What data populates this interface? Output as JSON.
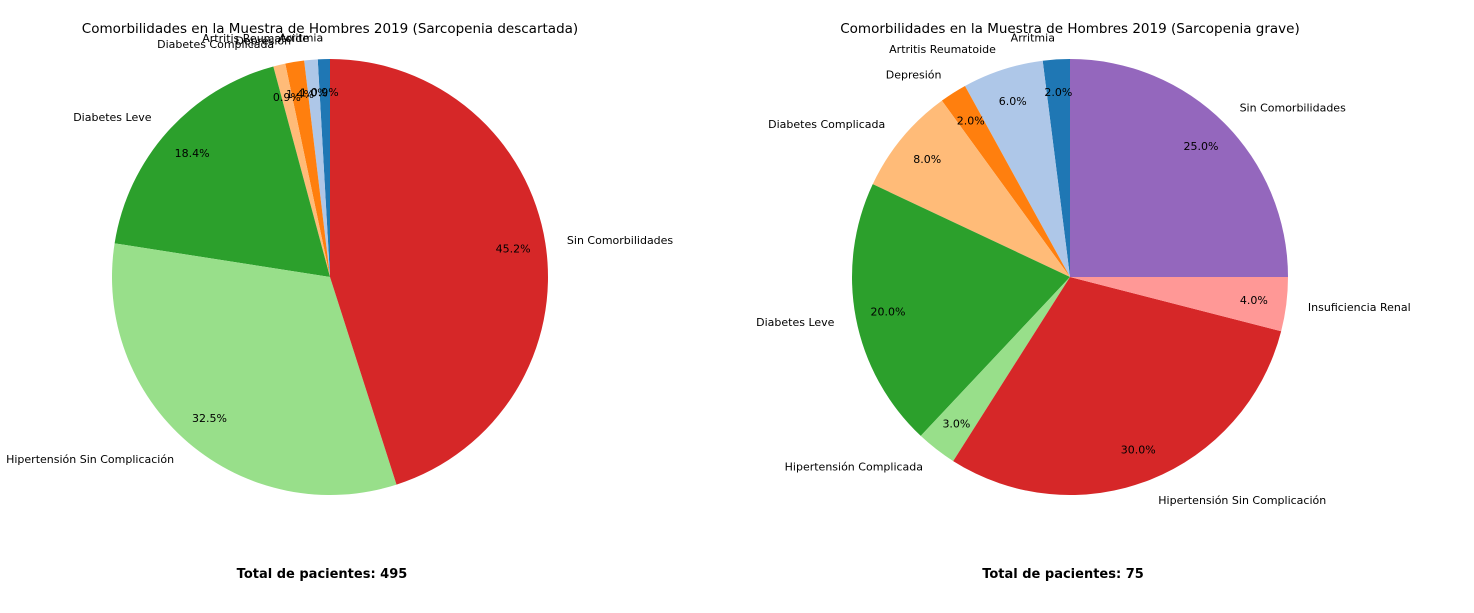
{
  "chart_data": [
    {
      "type": "pie",
      "title": "Comorbilidades en la Muestra de Hombres 2019 (Sarcopenia descartada)",
      "footer": "Total de pacientes: 495",
      "slices": [
        {
          "label": "Arritmia",
          "value": 0.9,
          "pct_label": "0.9%",
          "color": "#1f77b4"
        },
        {
          "label": "Artritis Reumatoide",
          "value": 1.0,
          "pct_label": "1.0%",
          "color": "#aec7e8"
        },
        {
          "label": "Depresión",
          "value": 1.4,
          "pct_label": "1.4%",
          "color": "#ff7f0e"
        },
        {
          "label": "Diabetes Complicada",
          "value": 0.9,
          "pct_label": "0.9%",
          "color": "#ffbb78"
        },
        {
          "label": "Diabetes Leve",
          "value": 18.4,
          "pct_label": "18.4%",
          "color": "#2ca02c"
        },
        {
          "label": "Hipertensión Sin Complicación",
          "value": 32.5,
          "pct_label": "32.5%",
          "color": "#98df8a"
        },
        {
          "label": "Sin Comorbilidades",
          "value": 45.2,
          "pct_label": "45.2%",
          "color": "#d62728"
        }
      ]
    },
    {
      "type": "pie",
      "title": "Comorbilidades en la Muestra de Hombres 2019 (Sarcopenia grave)",
      "footer": "Total de pacientes: 75",
      "slices": [
        {
          "label": "Arritmia",
          "value": 2.0,
          "pct_label": "2.0%",
          "color": "#1f77b4"
        },
        {
          "label": "Artritis Reumatoide",
          "value": 6.0,
          "pct_label": "6.0%",
          "color": "#aec7e8"
        },
        {
          "label": "Depresión",
          "value": 2.0,
          "pct_label": "2.0%",
          "color": "#ff7f0e"
        },
        {
          "label": "Diabetes Complicada",
          "value": 8.0,
          "pct_label": "8.0%",
          "color": "#ffbb78"
        },
        {
          "label": "Diabetes Leve",
          "value": 20.0,
          "pct_label": "20.0%",
          "color": "#2ca02c"
        },
        {
          "label": "Hipertensión Complicada",
          "value": 3.0,
          "pct_label": "3.0%",
          "color": "#98df8a"
        },
        {
          "label": "Hipertensión Sin Complicación",
          "value": 30.0,
          "pct_label": "30.0%",
          "color": "#d62728"
        },
        {
          "label": "Insuficiencia Renal",
          "value": 4.0,
          "pct_label": "4.0%",
          "color": "#ff9896"
        },
        {
          "label": "Sin Comorbilidades",
          "value": 25.0,
          "pct_label": "25.0%",
          "color": "#9467bd"
        }
      ]
    }
  ]
}
